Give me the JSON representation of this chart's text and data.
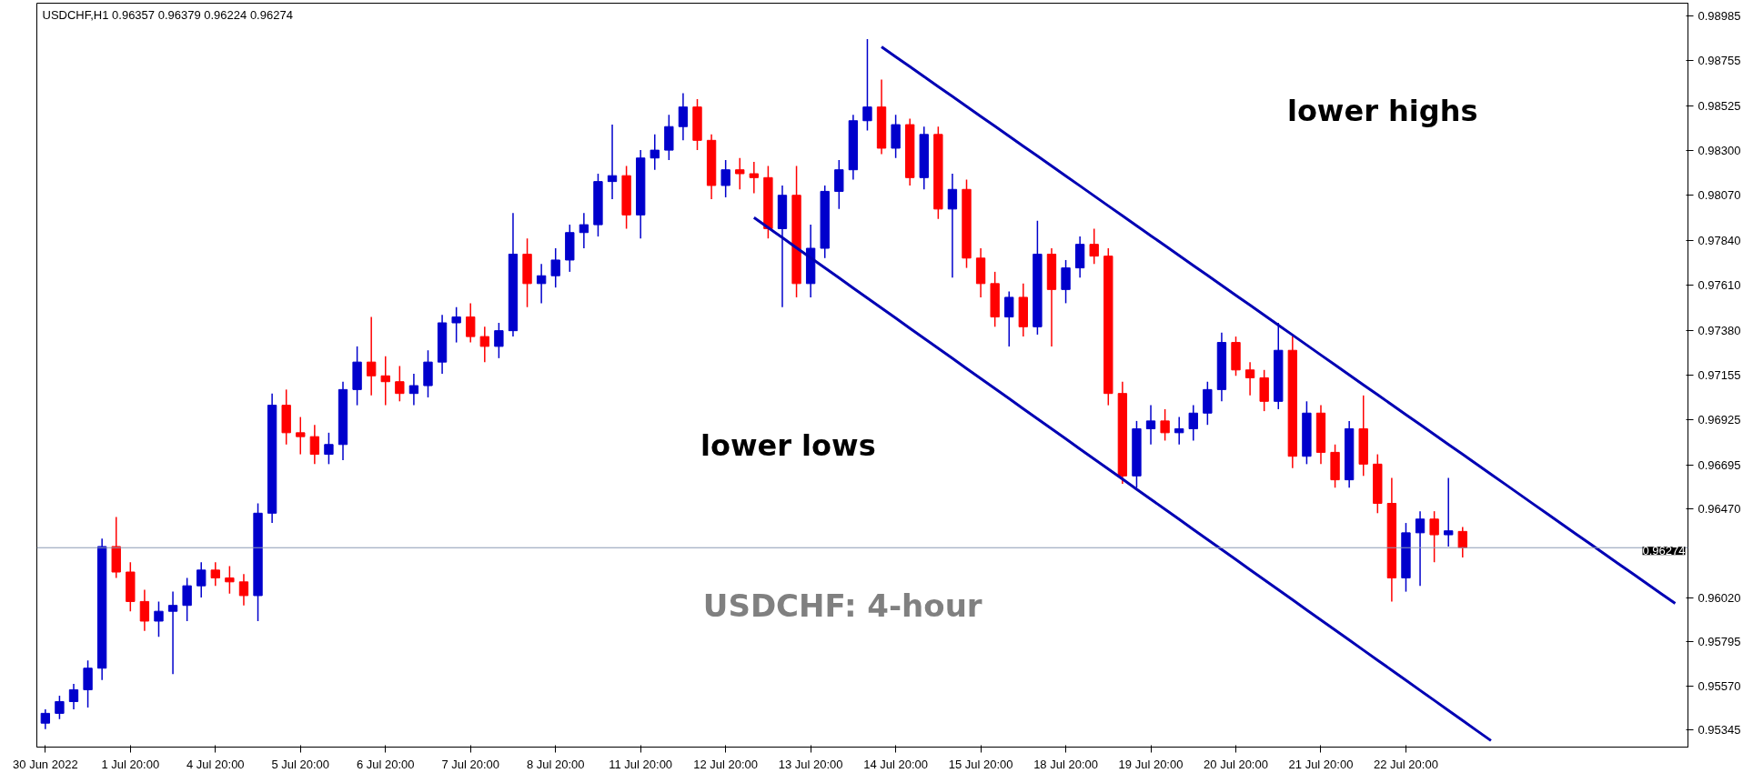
{
  "chart_data": {
    "type": "candlestick",
    "title": "USDCHF,H1  0.96357 0.96379 0.96224 0.96274",
    "categories": [
      "30 Jun 2022",
      null,
      null,
      null,
      null,
      null,
      "1 Jul 20:00",
      null,
      null,
      null,
      null,
      null,
      "4 Jul 20:00",
      null,
      null,
      null,
      null,
      null,
      "5 Jul 20:00",
      null,
      null,
      null,
      null,
      null,
      "6 Jul 20:00",
      null,
      null,
      null,
      null,
      null,
      "7 Jul 20:00",
      null,
      null,
      null,
      null,
      null,
      "8 Jul 20:00",
      null,
      null,
      null,
      null,
      null,
      "11 Jul 20:00",
      null,
      null,
      null,
      null,
      null,
      "12 Jul 20:00",
      null,
      null,
      null,
      null,
      null,
      "13 Jul 20:00",
      null,
      null,
      null,
      null,
      null,
      "14 Jul 20:00",
      null,
      null,
      null,
      null,
      null,
      "15 Jul 20:00",
      null,
      null,
      null,
      null,
      null,
      "18 Jul 20:00",
      null,
      null,
      null,
      null,
      null,
      "19 Jul 20:00",
      null,
      null,
      null,
      null,
      null,
      "20 Jul 20:00",
      null,
      null,
      null,
      null,
      null,
      "21 Jul 20:00",
      null,
      null,
      null,
      null,
      null,
      "22 Jul 20:00",
      null,
      null,
      null,
      null,
      null,
      null,
      null,
      null,
      null,
      null,
      null,
      null,
      null,
      null,
      null,
      null,
      null,
      null,
      null
    ],
    "ohlc": [
      [
        0.9538,
        0.9545,
        0.9535,
        0.9543
      ],
      [
        0.9543,
        0.9552,
        0.954,
        0.9549
      ],
      [
        0.9549,
        0.9558,
        0.9545,
        0.9555
      ],
      [
        0.9555,
        0.957,
        0.9546,
        0.9566
      ],
      [
        0.9566,
        0.9632,
        0.956,
        0.9628
      ],
      [
        0.9628,
        0.9643,
        0.9612,
        0.9615
      ],
      [
        0.9615,
        0.962,
        0.9595,
        0.96
      ],
      [
        0.96,
        0.9606,
        0.9585,
        0.959
      ],
      [
        0.959,
        0.96,
        0.9582,
        0.9595
      ],
      [
        0.9595,
        0.9605,
        0.9563,
        0.9598
      ],
      [
        0.9598,
        0.9612,
        0.959,
        0.9608
      ],
      [
        0.9608,
        0.962,
        0.9602,
        0.9616
      ],
      [
        0.9616,
        0.962,
        0.9608,
        0.9612
      ],
      [
        0.9612,
        0.9618,
        0.9604,
        0.961
      ],
      [
        0.961,
        0.9614,
        0.9598,
        0.9603
      ],
      [
        0.9603,
        0.965,
        0.959,
        0.9645
      ],
      [
        0.9645,
        0.9706,
        0.964,
        0.97
      ],
      [
        0.97,
        0.9708,
        0.968,
        0.9686
      ],
      [
        0.9686,
        0.9694,
        0.9675,
        0.9684
      ],
      [
        0.9684,
        0.969,
        0.967,
        0.9675
      ],
      [
        0.9675,
        0.9686,
        0.967,
        0.968
      ],
      [
        0.968,
        0.9712,
        0.9672,
        0.9708
      ],
      [
        0.9708,
        0.973,
        0.97,
        0.9722
      ],
      [
        0.9722,
        0.9745,
        0.9705,
        0.9715
      ],
      [
        0.9715,
        0.9725,
        0.97,
        0.9712
      ],
      [
        0.9712,
        0.972,
        0.9702,
        0.9706
      ],
      [
        0.9706,
        0.9716,
        0.97,
        0.971
      ],
      [
        0.971,
        0.9728,
        0.9704,
        0.9722
      ],
      [
        0.9722,
        0.9746,
        0.9716,
        0.9742
      ],
      [
        0.9742,
        0.975,
        0.9732,
        0.9745
      ],
      [
        0.9745,
        0.9752,
        0.9732,
        0.9735
      ],
      [
        0.9735,
        0.974,
        0.9722,
        0.973
      ],
      [
        0.973,
        0.9742,
        0.9724,
        0.9738
      ],
      [
        0.9738,
        0.9798,
        0.9735,
        0.9777
      ],
      [
        0.9777,
        0.9785,
        0.975,
        0.9762
      ],
      [
        0.9762,
        0.9772,
        0.9752,
        0.9766
      ],
      [
        0.9766,
        0.978,
        0.976,
        0.9774
      ],
      [
        0.9774,
        0.9792,
        0.9768,
        0.9788
      ],
      [
        0.9788,
        0.9798,
        0.978,
        0.9792
      ],
      [
        0.9792,
        0.9818,
        0.9786,
        0.9814
      ],
      [
        0.9814,
        0.9843,
        0.9805,
        0.9817
      ],
      [
        0.9817,
        0.9822,
        0.979,
        0.9797
      ],
      [
        0.9797,
        0.983,
        0.9785,
        0.9826
      ],
      [
        0.9826,
        0.9838,
        0.982,
        0.983
      ],
      [
        0.983,
        0.9848,
        0.9825,
        0.9842
      ],
      [
        0.9842,
        0.9859,
        0.9835,
        0.9852
      ],
      [
        0.9852,
        0.9856,
        0.983,
        0.9835
      ],
      [
        0.9835,
        0.9838,
        0.9805,
        0.9812
      ],
      [
        0.9812,
        0.9825,
        0.9806,
        0.982
      ],
      [
        0.982,
        0.9826,
        0.981,
        0.9818
      ],
      [
        0.9818,
        0.9824,
        0.9808,
        0.9816
      ],
      [
        0.9816,
        0.9822,
        0.9785,
        0.979
      ],
      [
        0.979,
        0.9812,
        0.975,
        0.9807
      ],
      [
        0.9807,
        0.9822,
        0.9755,
        0.9762
      ],
      [
        0.9762,
        0.9792,
        0.9755,
        0.978
      ],
      [
        0.978,
        0.9812,
        0.9775,
        0.9809
      ],
      [
        0.9809,
        0.9825,
        0.98,
        0.982
      ],
      [
        0.982,
        0.9848,
        0.9815,
        0.9845
      ],
      [
        0.9845,
        0.98866,
        0.984,
        0.9852
      ],
      [
        0.9852,
        0.9866,
        0.9828,
        0.9831
      ],
      [
        0.9831,
        0.9848,
        0.9826,
        0.9843
      ],
      [
        0.9843,
        0.9846,
        0.9812,
        0.9816
      ],
      [
        0.9816,
        0.9842,
        0.981,
        0.9838
      ],
      [
        0.9838,
        0.9842,
        0.9795,
        0.98
      ],
      [
        0.98,
        0.9818,
        0.9765,
        0.981
      ],
      [
        0.981,
        0.9815,
        0.977,
        0.9775
      ],
      [
        0.9775,
        0.978,
        0.9755,
        0.9762
      ],
      [
        0.9762,
        0.9768,
        0.974,
        0.9745
      ],
      [
        0.9745,
        0.9758,
        0.973,
        0.9755
      ],
      [
        0.9755,
        0.9762,
        0.9735,
        0.974
      ],
      [
        0.974,
        0.9794,
        0.9736,
        0.9777
      ],
      [
        0.9777,
        0.978,
        0.973,
        0.9759
      ],
      [
        0.9759,
        0.9774,
        0.9752,
        0.977
      ],
      [
        0.977,
        0.9786,
        0.9765,
        0.9782
      ],
      [
        0.9782,
        0.979,
        0.9772,
        0.9776
      ],
      [
        0.9776,
        0.978,
        0.97,
        0.9706
      ],
      [
        0.9706,
        0.9712,
        0.966,
        0.9664
      ],
      [
        0.9664,
        0.9692,
        0.9658,
        0.9688
      ],
      [
        0.9688,
        0.97,
        0.968,
        0.9692
      ],
      [
        0.9692,
        0.9698,
        0.9682,
        0.9686
      ],
      [
        0.9686,
        0.9694,
        0.968,
        0.9688
      ],
      [
        0.9688,
        0.97,
        0.9682,
        0.9696
      ],
      [
        0.9696,
        0.9712,
        0.969,
        0.9708
      ],
      [
        0.9708,
        0.9737,
        0.9702,
        0.9732
      ],
      [
        0.9732,
        0.9735,
        0.9715,
        0.9718
      ],
      [
        0.9718,
        0.9722,
        0.9705,
        0.9714
      ],
      [
        0.9714,
        0.9718,
        0.9697,
        0.9702
      ],
      [
        0.9702,
        0.9742,
        0.9698,
        0.9728
      ],
      [
        0.9728,
        0.9735,
        0.9668,
        0.9674
      ],
      [
        0.9674,
        0.9702,
        0.967,
        0.9696
      ],
      [
        0.9696,
        0.97,
        0.967,
        0.9676
      ],
      [
        0.9676,
        0.968,
        0.9658,
        0.9662
      ],
      [
        0.9662,
        0.9692,
        0.9658,
        0.9688
      ],
      [
        0.9688,
        0.9705,
        0.9664,
        0.967
      ],
      [
        0.967,
        0.9675,
        0.9645,
        0.965
      ],
      [
        0.965,
        0.9663,
        0.96,
        0.9612
      ],
      [
        0.9612,
        0.964,
        0.9605,
        0.9635
      ],
      [
        0.9635,
        0.9646,
        0.9608,
        0.9642
      ],
      [
        0.9642,
        0.9646,
        0.962,
        0.9634
      ],
      [
        0.9634,
        0.9663,
        0.9628,
        0.9636
      ],
      [
        0.96357,
        0.96379,
        0.96224,
        0.96274
      ],
      null,
      null,
      null,
      null,
      null,
      null,
      null,
      null,
      null,
      null,
      null,
      null,
      null,
      null,
      null
    ],
    "colors": [
      "#0000cc",
      "#0000cc",
      "#0000cc",
      "#0000cc",
      "#0000cc",
      "#ff0000",
      "#ff0000",
      "#ff0000",
      "#0000cc",
      "#0000cc",
      "#0000cc",
      "#0000cc",
      "#ff0000",
      "#ff0000",
      "#ff0000",
      "#0000cc",
      "#0000cc",
      "#ff0000",
      "#ff0000",
      "#ff0000",
      "#0000cc",
      "#0000cc",
      "#0000cc",
      "#ff0000",
      "#ff0000",
      "#ff0000",
      "#0000cc",
      "#0000cc",
      "#0000cc",
      "#0000cc",
      "#ff0000",
      "#ff0000",
      "#0000cc",
      "#0000cc",
      "#ff0000",
      "#0000cc",
      "#0000cc",
      "#0000cc",
      "#0000cc",
      "#0000cc",
      "#0000cc",
      "#ff0000",
      "#0000cc",
      "#0000cc",
      "#0000cc",
      "#0000cc",
      "#ff0000",
      "#ff0000",
      "#0000cc",
      "#ff0000",
      "#ff0000",
      "#ff0000",
      "#0000cc",
      "#ff0000",
      "#0000cc",
      "#0000cc",
      "#0000cc",
      "#0000cc",
      "#0000cc",
      "#ff0000",
      "#0000cc",
      "#ff0000",
      "#0000cc",
      "#ff0000",
      "#0000cc",
      "#ff0000",
      "#ff0000",
      "#ff0000",
      "#0000cc",
      "#ff0000",
      "#0000cc",
      "#ff0000",
      "#0000cc",
      "#0000cc",
      "#ff0000",
      "#ff0000",
      "#ff0000",
      "#0000cc",
      "#0000cc",
      "#ff0000",
      "#0000cc",
      "#0000cc",
      "#0000cc",
      "#0000cc",
      "#ff0000",
      "#ff0000",
      "#ff0000",
      "#0000cc",
      "#ff0000",
      "#0000cc",
      "#ff0000",
      "#ff0000",
      "#0000cc",
      "#ff0000",
      "#ff0000",
      "#ff0000",
      "#0000cc",
      "#0000cc",
      "#ff0000",
      "#0000cc",
      "#ff0000",
      null,
      null,
      null,
      null,
      null,
      null,
      null,
      null,
      null,
      null,
      null,
      null,
      null,
      null,
      null
    ],
    "series": [
      {
        "type": "line",
        "color": "#0000b4",
        "values": [
          null,
          null,
          null,
          null,
          null,
          null,
          null,
          null,
          null,
          null,
          null,
          null,
          null,
          null,
          null,
          null,
          null,
          null,
          null,
          null,
          null,
          null,
          null,
          null,
          null,
          null,
          null,
          null,
          null,
          null,
          null,
          null,
          null,
          null,
          null,
          null,
          null,
          null,
          null,
          null,
          null,
          null,
          null,
          null,
          null,
          null,
          null,
          null,
          null,
          null,
          null,
          null,
          null,
          null,
          null,
          null,
          null,
          null,
          null,
          0.98827,
          0.98776,
          0.98726,
          0.98675,
          0.98624,
          0.98574,
          0.98523,
          0.98472,
          0.98422,
          0.98371,
          0.9832,
          0.9827,
          0.98219,
          0.98168,
          0.98118,
          0.98067,
          0.98016,
          0.97966,
          0.97915,
          0.97864,
          0.97814,
          0.97763,
          0.97712,
          0.97662,
          0.97611,
          0.9756,
          0.9751,
          0.97459,
          0.97408,
          0.97358,
          0.97307,
          0.97256,
          0.97206,
          0.97155,
          0.97104,
          0.97054,
          0.97003,
          0.96952,
          0.96902,
          0.96851,
          0.968,
          0.9675,
          0.96699,
          0.96648,
          0.96598,
          0.96547,
          0.96496,
          0.96446,
          0.96395,
          0.96344,
          0.96294,
          0.96243,
          0.96192,
          0.96142,
          0.96091,
          0.9604,
          0.9599
        ]
      },
      {
        "type": "line",
        "color": "#0000b4",
        "values": [
          null,
          null,
          null,
          null,
          null,
          null,
          null,
          null,
          null,
          null,
          null,
          null,
          null,
          null,
          null,
          null,
          null,
          null,
          null,
          null,
          null,
          null,
          null,
          null,
          null,
          null,
          null,
          null,
          null,
          null,
          null,
          null,
          null,
          null,
          null,
          null,
          null,
          null,
          null,
          null,
          null,
          null,
          null,
          null,
          null,
          null,
          null,
          null,
          null,
          null,
          0.97956,
          0.97905,
          0.97854,
          0.97802,
          0.97751,
          0.977,
          0.97649,
          0.97597,
          0.97546,
          0.97495,
          0.97444,
          0.97392,
          0.97341,
          0.9729,
          0.97239,
          0.97187,
          0.97136,
          0.97085,
          0.97034,
          0.96982,
          0.96931,
          0.9688,
          0.96829,
          0.96777,
          0.96726,
          0.96675,
          0.96624,
          0.96572,
          0.96521,
          0.9647,
          0.96419,
          0.96367,
          0.96316,
          0.96265,
          0.96214,
          0.96162,
          0.96111,
          0.9606,
          0.96009,
          0.95957,
          0.95906,
          0.95855,
          0.95804,
          0.95752,
          0.95701,
          0.9565,
          0.95599,
          0.95547,
          0.95496,
          0.95445,
          0.95394,
          0.95342,
          0.95291,
          null,
          null,
          null,
          null,
          null,
          null,
          null,
          null,
          null,
          null,
          null,
          null,
          null
        ]
      }
    ],
    "ylim": [
      0.95258,
      0.99049
    ],
    "yticks": [
      0.98985,
      0.98755,
      0.98525,
      {
        "value": 0.983,
        "label": "0.98300"
      },
      {
        "value": 0.9807,
        "label": "0.98070"
      },
      {
        "value": 0.9784,
        "label": "0.97840"
      },
      {
        "value": 0.9761,
        "label": "0.97610"
      },
      {
        "value": 0.9738,
        "label": "0.97380"
      },
      0.97155,
      0.96925,
      0.96695,
      {
        "value": 0.9647,
        "label": "0.96470"
      },
      {
        "value": 0.9602,
        "label": "0.96020"
      },
      0.95795,
      {
        "value": 0.9557,
        "label": "0.95570"
      },
      0.95345
    ],
    "ref_lines": [
      {
        "axis": "y",
        "value": 0.96274,
        "label": "0.96274",
        "color": "#8c9ab4"
      }
    ],
    "annotations": [
      "lower highs",
      "lower lows",
      "USDCHF: 4-hour"
    ]
  }
}
